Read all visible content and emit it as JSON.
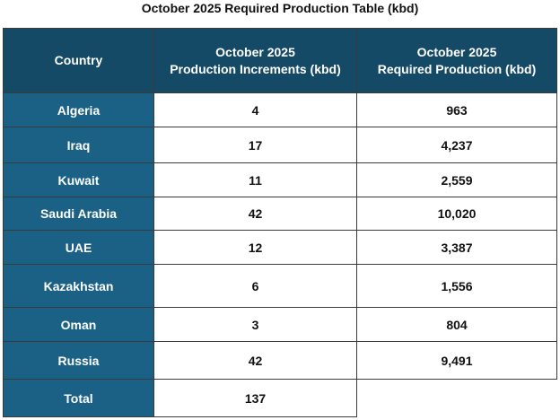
{
  "title": "October 2025 Required Production Table (kbd)",
  "table": {
    "headers": {
      "country": "Country",
      "increments_line1": "October 2025",
      "increments_line2": "Production Increments (kbd)",
      "required_line1": "October 2025",
      "required_line2": "Required Production (kbd)"
    },
    "rows": [
      {
        "country": "Algeria",
        "increment": "4",
        "required": "963"
      },
      {
        "country": "Iraq",
        "increment": "17",
        "required": "4,237"
      },
      {
        "country": "Kuwait",
        "increment": "11",
        "required": "2,559"
      },
      {
        "country": "Saudi Arabia",
        "increment": "42",
        "required": "10,020"
      },
      {
        "country": "UAE",
        "increment": "12",
        "required": "3,387"
      },
      {
        "country": "Kazakhstan",
        "increment": "6",
        "required": "1,556"
      },
      {
        "country": "Oman",
        "increment": "3",
        "required": "804"
      },
      {
        "country": "Russia",
        "increment": "42",
        "required": "9,491"
      }
    ],
    "total": {
      "label": "Total",
      "increment": "137"
    }
  },
  "colors": {
    "header_bg": "#154a66",
    "country_bg": "#1b6186",
    "border": "#3a3a3a"
  }
}
